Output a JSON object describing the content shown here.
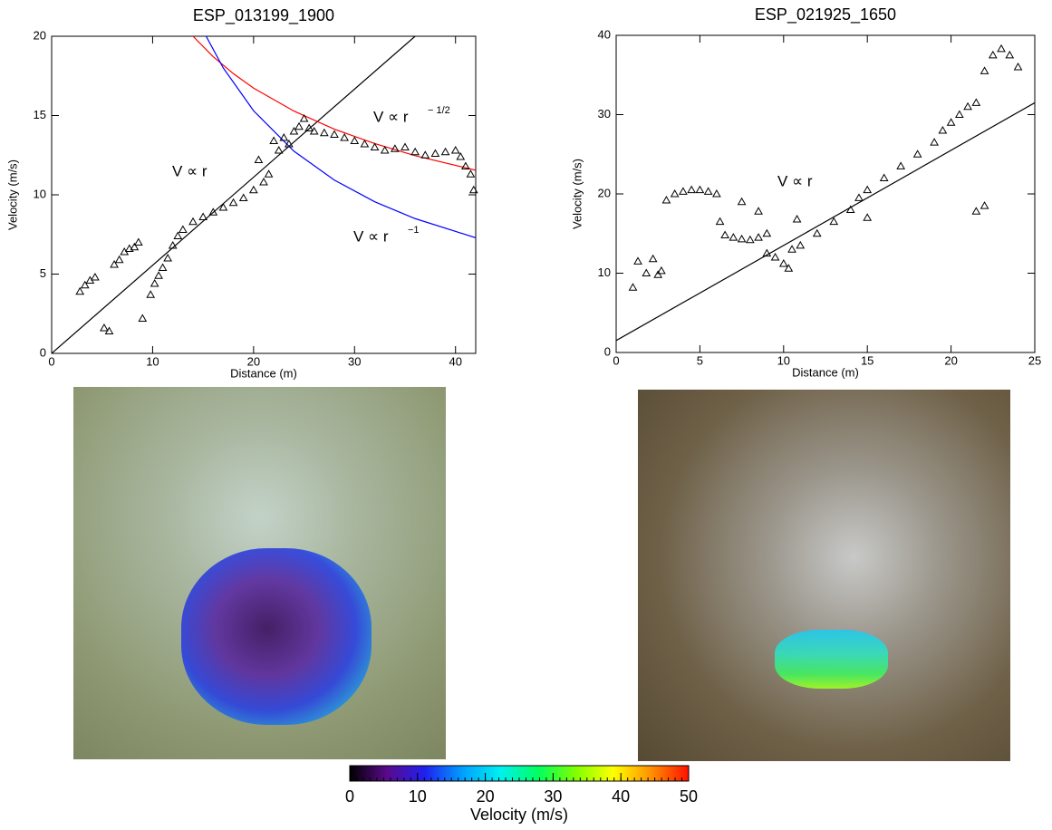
{
  "chart_data": [
    {
      "type": "scatter",
      "title": "ESP_013199_1900",
      "xlabel": "Distance (m)",
      "ylabel": "Velocity (m/s)",
      "xlim": [
        0,
        42
      ],
      "ylim": [
        0,
        20
      ],
      "xticks": [
        0,
        10,
        20,
        30,
        40
      ],
      "yticks": [
        0,
        5,
        10,
        15,
        20
      ],
      "x": [
        2.8,
        3.3,
        3.8,
        4.3,
        5.2,
        5.7,
        6.2,
        6.7,
        7.2,
        7.7,
        8.2,
        8.6,
        9.0,
        9.8,
        10.2,
        10.6,
        11.0,
        11.5,
        12.0,
        12.5,
        13.0,
        14,
        15,
        16,
        17,
        18,
        19,
        20,
        20.5,
        21,
        21.5,
        22,
        22.5,
        23,
        23.5,
        24,
        24.5,
        25,
        25.5,
        26,
        27,
        28,
        29,
        30,
        31,
        32,
        33,
        34,
        35,
        36,
        37,
        38,
        39,
        40,
        40.5,
        41,
        41.5,
        41.8
      ],
      "values": [
        3.9,
        4.3,
        4.6,
        4.8,
        1.6,
        1.4,
        5.6,
        5.9,
        6.4,
        6.6,
        6.7,
        7.0,
        2.2,
        3.7,
        4.4,
        4.9,
        5.4,
        6.0,
        6.8,
        7.4,
        7.8,
        8.3,
        8.6,
        8.9,
        9.2,
        9.5,
        9.8,
        10.3,
        12.2,
        10.8,
        11.3,
        13.4,
        12.8,
        13.6,
        13.2,
        14.0,
        14.3,
        14.8,
        14.2,
        14.0,
        13.9,
        13.8,
        13.6,
        13.4,
        13.2,
        13.0,
        12.8,
        12.9,
        13.0,
        12.7,
        12.5,
        12.6,
        12.7,
        12.8,
        12.4,
        11.8,
        11.3,
        10.3
      ],
      "fits": [
        {
          "color": "#000000",
          "x": [
            0,
            36
          ],
          "values": [
            0,
            20
          ]
        },
        {
          "color": "#ff0000",
          "x": [
            14,
            16,
            18,
            20,
            24,
            28,
            32,
            36,
            42
          ],
          "values": [
            20,
            18.71,
            17.64,
            16.73,
            15.28,
            14.14,
            13.23,
            12.47,
            11.55
          ]
        },
        {
          "color": "#0000ff",
          "x": [
            15.3,
            17,
            20,
            24,
            28,
            32,
            36,
            42
          ],
          "values": [
            20,
            18,
            15.3,
            12.75,
            10.93,
            9.56,
            8.5,
            7.29
          ]
        }
      ],
      "annotations": [
        {
          "text": "V ∝ r"
        },
        {
          "text": "V ∝ r",
          "sup": "− 1/2"
        },
        {
          "text": "V ∝ r",
          "sup": "−1"
        }
      ]
    },
    {
      "type": "scatter",
      "title": "ESP_021925_1650",
      "xlabel": "Distance (m)",
      "ylabel": "Velocity (m/s)",
      "xlim": [
        0,
        25
      ],
      "ylim": [
        0,
        40
      ],
      "xticks": [
        0,
        5,
        10,
        15,
        20,
        25
      ],
      "yticks": [
        0,
        10,
        20,
        30,
        40
      ],
      "x": [
        1,
        1.3,
        1.8,
        2.2,
        2.5,
        2.7,
        3,
        3.5,
        4,
        4.5,
        5,
        5.5,
        6,
        6.2,
        6.5,
        7,
        7.5,
        8,
        8.5,
        9,
        8.5,
        7.5,
        9,
        9.5,
        10,
        10.3,
        10.8,
        10.5,
        11,
        12,
        13,
        14,
        14.5,
        15,
        15,
        16,
        17,
        18,
        19,
        19.5,
        20,
        20.5,
        21,
        21.5,
        21.5,
        22,
        22,
        22.5,
        23,
        23.5,
        24
      ],
      "values": [
        8.2,
        11.5,
        10,
        11.8,
        9.8,
        10.3,
        19.2,
        20,
        20.3,
        20.5,
        20.5,
        20.3,
        20,
        16.5,
        14.8,
        14.5,
        14.3,
        14.2,
        14.5,
        15,
        17.8,
        19,
        12.5,
        12,
        11.2,
        10.6,
        16.8,
        13,
        13.5,
        15,
        16.5,
        18,
        19.5,
        20.5,
        17,
        22,
        23.5,
        25,
        26.5,
        28,
        29,
        30,
        31,
        31.5,
        17.8,
        18.5,
        35.5,
        37.5,
        38.3,
        37.5,
        36
      ],
      "fits": [
        {
          "color": "#000000",
          "x": [
            0,
            25
          ],
          "values": [
            1.5,
            31.5
          ]
        }
      ],
      "annotations": [
        {
          "text": "V ∝ r"
        }
      ]
    },
    {
      "type": "colorbar",
      "xlabel": "Velocity (m/s)",
      "xlim": [
        0,
        50
      ],
      "xticks": [
        0,
        10,
        20,
        30,
        40,
        50
      ],
      "colors": [
        "#000000",
        "#5a0a8c",
        "#2020f0",
        "#00a0ff",
        "#00f0f0",
        "#00ff60",
        "#80ff00",
        "#ffff00",
        "#ff9000",
        "#ff1000"
      ]
    }
  ]
}
